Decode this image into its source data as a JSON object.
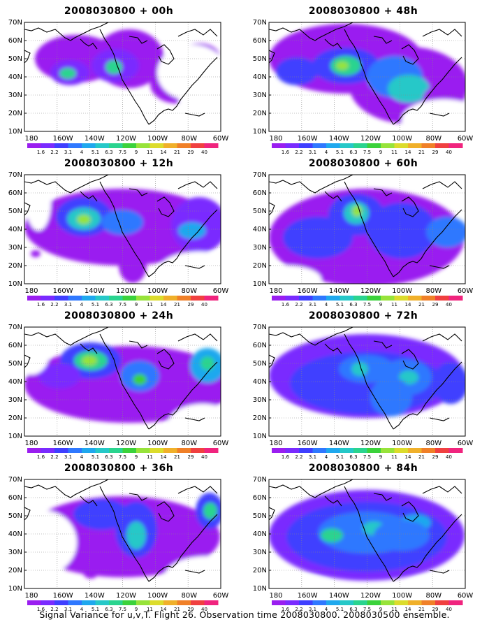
{
  "lat_labels": [
    "70N",
    "60N",
    "50N",
    "40N",
    "30N",
    "20N",
    "10N"
  ],
  "lon_labels": [
    "180",
    "160W",
    "140W",
    "120W",
    "100W",
    "80W",
    "60W"
  ],
  "colorbar": {
    "labels": [
      "1.6",
      "2.2",
      "3.1",
      "4",
      "5.1",
      "6.3",
      "7.5",
      "9",
      "11",
      "14",
      "21",
      "29",
      "40"
    ],
    "colors": [
      "#9a1ef0",
      "#7a2bff",
      "#3f3fff",
      "#2f78ff",
      "#1fa8ee",
      "#26c8c8",
      "#2ad48f",
      "#3bd23b",
      "#97e33a",
      "#dcdc2c",
      "#f0b02a",
      "#f08028",
      "#f04040",
      "#f0247e"
    ]
  },
  "panels": [
    {
      "title": "2008030800 + 00h"
    },
    {
      "title": "2008030800 + 48h"
    },
    {
      "title": "2008030800 + 12h"
    },
    {
      "title": "2008030800 + 60h"
    },
    {
      "title": "2008030800 + 24h"
    },
    {
      "title": "2008030800 + 72h"
    },
    {
      "title": "2008030800 + 36h"
    },
    {
      "title": "2008030800 + 84h"
    }
  ],
  "footer": "Signal Variance for u,v,T. Flight 26. Observation time 2008030800. 2008030500 ensemble."
}
